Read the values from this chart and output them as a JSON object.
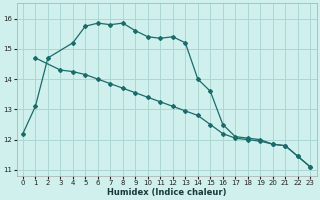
{
  "xlabel": "Humidex (Indice chaleur)",
  "bg_color": "#cff0ec",
  "grid_color": "#aad8d2",
  "line_color": "#1a6b6b",
  "xlim": [
    -0.5,
    23.5
  ],
  "ylim": [
    10.8,
    16.5
  ],
  "yticks": [
    11,
    12,
    13,
    14,
    15,
    16
  ],
  "xticks": [
    0,
    1,
    2,
    3,
    4,
    5,
    6,
    7,
    8,
    9,
    10,
    11,
    12,
    13,
    14,
    15,
    16,
    17,
    18,
    19,
    20,
    21,
    22,
    23
  ],
  "series1_x": [
    0,
    1,
    2,
    4,
    5,
    6,
    7,
    8,
    9,
    10,
    11,
    12,
    13,
    14,
    15,
    16,
    17,
    18,
    19,
    20,
    21,
    22,
    23
  ],
  "series1_y": [
    12.2,
    13.1,
    14.7,
    15.2,
    15.75,
    15.85,
    15.8,
    15.85,
    15.6,
    15.4,
    15.35,
    15.4,
    15.2,
    14.0,
    13.6,
    12.5,
    12.1,
    12.05,
    12.0,
    11.85,
    11.8,
    11.45,
    11.1
  ],
  "series2_x": [
    1,
    3,
    4,
    5,
    6,
    7,
    8,
    9,
    10,
    11,
    12,
    13,
    14,
    15,
    16,
    17,
    18,
    19,
    20,
    21,
    22,
    23
  ],
  "series2_y": [
    14.7,
    14.3,
    14.25,
    14.15,
    14.0,
    13.85,
    13.7,
    13.55,
    13.4,
    13.25,
    13.1,
    12.95,
    12.8,
    12.5,
    12.2,
    12.05,
    12.0,
    11.95,
    11.85,
    11.8,
    11.45,
    11.1
  ],
  "markersize": 2.0,
  "linewidth": 0.9
}
